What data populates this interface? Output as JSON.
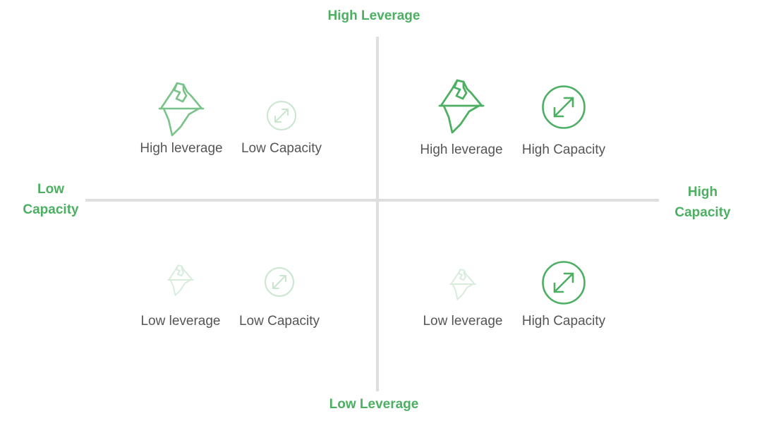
{
  "axes": {
    "top": "High Leverage",
    "bottom": "Low Leverage",
    "left": [
      "Low",
      "Capacity"
    ],
    "right": [
      "High",
      "Capacity"
    ]
  },
  "quadrants": {
    "top_left": {
      "leverage": {
        "label": "High leverage",
        "icon": "iceberg-icon"
      },
      "capacity": {
        "label": "Low Capacity",
        "icon": "expand-arrows-icon"
      }
    },
    "top_right": {
      "leverage": {
        "label": "High leverage",
        "icon": "iceberg-icon"
      },
      "capacity": {
        "label": "High Capacity",
        "icon": "expand-arrows-icon"
      }
    },
    "bottom_left": {
      "leverage": {
        "label": "Low leverage",
        "icon": "iceberg-icon"
      },
      "capacity": {
        "label": "Low Capacity",
        "icon": "expand-arrows-icon"
      }
    },
    "bottom_right": {
      "leverage": {
        "label": "Low leverage",
        "icon": "iceberg-icon"
      },
      "capacity": {
        "label": "High Capacity",
        "icon": "expand-arrows-icon"
      }
    }
  },
  "colors": {
    "accent": "#4caf62",
    "axis_line": "#dedede",
    "caption_text": "#555555"
  }
}
